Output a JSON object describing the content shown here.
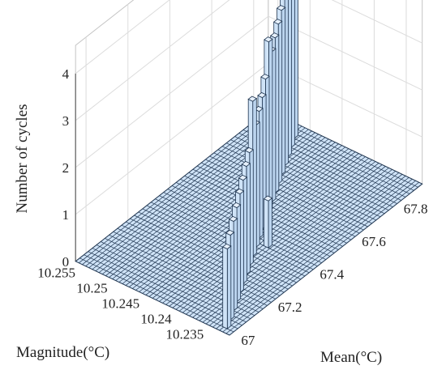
{
  "chart_data": {
    "type": "bar3d",
    "zlabel": "Number of cycles",
    "xlabel": "Mean(°C)",
    "ylabel": "Magnitude(°C)",
    "x_ticks": [
      "67",
      "67.2",
      "67.4",
      "67.6",
      "67.8"
    ],
    "y_ticks": [
      "10.255",
      "10.25",
      "10.245",
      "10.24",
      "10.235"
    ],
    "z_ticks": [
      "0",
      "1",
      "2",
      "3",
      "4"
    ],
    "zlim": [
      0,
      4
    ],
    "grid": true,
    "bar_color": "#cfe3f7",
    "edge_color": "#1f3550",
    "ridge": [
      {
        "mean": 66.97,
        "count": 1.7
      },
      {
        "mean": 67.01,
        "count": 1.8
      },
      {
        "mean": 67.05,
        "count": 1.9
      },
      {
        "mean": 67.09,
        "count": 2.0
      },
      {
        "mean": 67.13,
        "count": 2.1
      },
      {
        "mean": 67.17,
        "count": 2.2
      },
      {
        "mean": 67.21,
        "count": 2.3
      },
      {
        "mean": 67.25,
        "count": 2.4
      },
      {
        "mean": 67.29,
        "count": 3.3
      },
      {
        "mean": 67.33,
        "count": 2.6
      },
      {
        "mean": 67.37,
        "count": 2.7
      },
      {
        "mean": 67.41,
        "count": 2.8
      },
      {
        "mean": 67.45,
        "count": 3.0
      },
      {
        "mean": 67.49,
        "count": 3.6
      },
      {
        "mean": 67.53,
        "count": 3.2
      },
      {
        "mean": 67.57,
        "count": 3.3
      },
      {
        "mean": 67.61,
        "count": 3.4
      },
      {
        "mean": 67.65,
        "count": 3.5
      },
      {
        "mean": 67.69,
        "count": 3.9
      },
      {
        "mean": 67.73,
        "count": 3.7
      },
      {
        "mean": 67.77,
        "count": 4.0
      },
      {
        "mean": 67.81,
        "count": 4.1
      }
    ],
    "lone_bar": {
      "mean": 67.35,
      "count": 1.0
    }
  }
}
